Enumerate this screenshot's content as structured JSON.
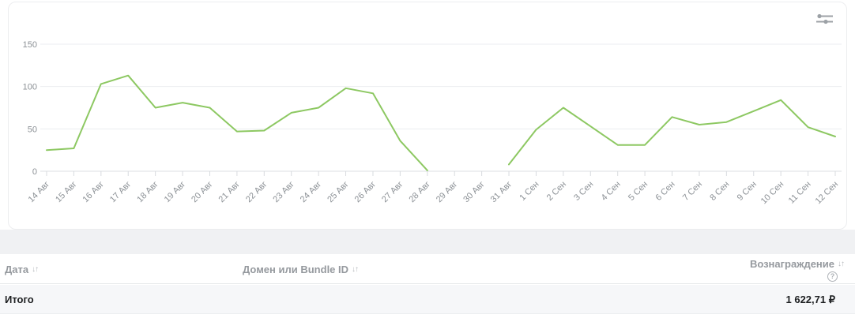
{
  "chart_card": {
    "settings_icon": "sliders-icon"
  },
  "chart_data": {
    "type": "line",
    "title": "",
    "xlabel": "",
    "ylabel": "",
    "categories": [
      "14 Авг",
      "15 Авг",
      "16 Авг",
      "17 Авг",
      "18 Авг",
      "19 Авг",
      "20 Авг",
      "21 Авг",
      "22 Авг",
      "23 Авг",
      "24 Авг",
      "25 Авг",
      "26 Авг",
      "27 Авг",
      "28 Авг",
      "29 Авг",
      "30 Авг",
      "31 Авг",
      "1 Сен",
      "2 Сен",
      "3 Сен",
      "4 Сен",
      "5 Сен",
      "6 Сен",
      "7 Сен",
      "8 Сен",
      "9 Сен",
      "10 Сен",
      "11 Сен",
      "12 Сен"
    ],
    "series": [
      {
        "name": "Вознаграждение",
        "color": "#8dc862",
        "values": [
          25,
          27,
          103,
          113,
          75,
          81,
          75,
          47,
          48,
          69,
          75,
          98,
          92,
          36,
          1,
          null,
          null,
          8,
          49,
          75,
          53,
          31,
          31,
          64,
          55,
          58,
          71,
          84,
          52,
          41
        ]
      }
    ],
    "ylim": [
      0,
      162
    ],
    "yticks": [
      0,
      50,
      100,
      150
    ],
    "grid": "horizontal",
    "legend": "none",
    "x_label_rotation": -45,
    "missing_dates": [
      "29 Авг",
      "30 Авг"
    ]
  },
  "table": {
    "columns": [
      {
        "label": "Дата",
        "sort_icon": "↓↑"
      },
      {
        "label": "Домен или Bundle ID",
        "sort_icon": "↓↑"
      },
      {
        "label": "Вознаграждение",
        "sort_icon": "↓↑",
        "help_icon": "?"
      }
    ],
    "total": {
      "label": "Итого",
      "value": "1 622,71 ₽"
    }
  },
  "colors": {
    "line": "#8dc862",
    "gridline": "#ebedf0",
    "axis_line": "#dcdfe3",
    "tick": "#d8dbdf",
    "axis_text": "#8c9196",
    "band_bg": "#f0f1f3",
    "total_row_bg": "#f6f7f9"
  }
}
